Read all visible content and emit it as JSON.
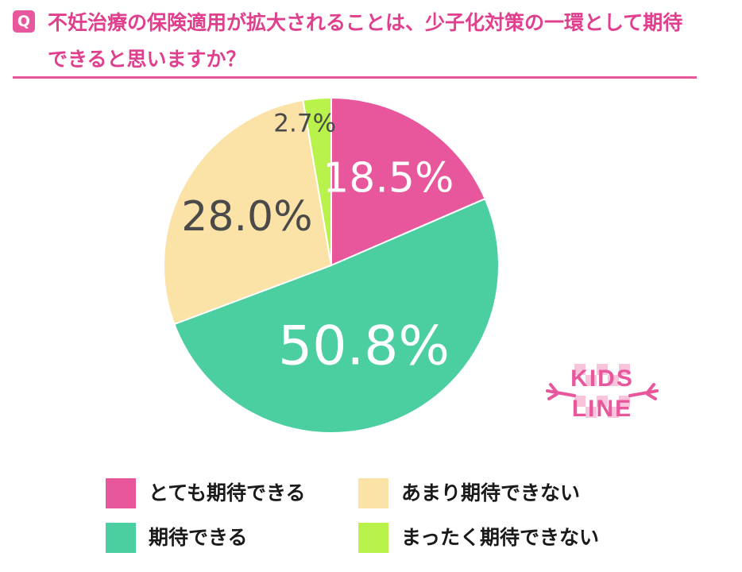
{
  "question": {
    "badge": "Q",
    "text": "不妊治療の保険適用が拡大されることは、少子化対策の一環として期待できると思いますか？"
  },
  "logo": {
    "line1": "KIDS",
    "line2": "LINE"
  },
  "colors": {
    "accent": "#e8579c",
    "segments": [
      "#e8579c",
      "#4ccfa0",
      "#fbe2a6",
      "#b8f24a"
    ]
  },
  "chart_data": {
    "type": "pie",
    "categories": [
      "とても期待できる",
      "期待できる",
      "あまり期待できない",
      "まったく期待できない"
    ],
    "values": [
      18.5,
      50.8,
      28.0,
      2.7
    ],
    "data_labels": [
      "18.5%",
      "50.8%",
      "28.0%",
      "2.7%"
    ],
    "start": "12 o'clock",
    "direction": "clockwise",
    "legend_position": "bottom"
  }
}
